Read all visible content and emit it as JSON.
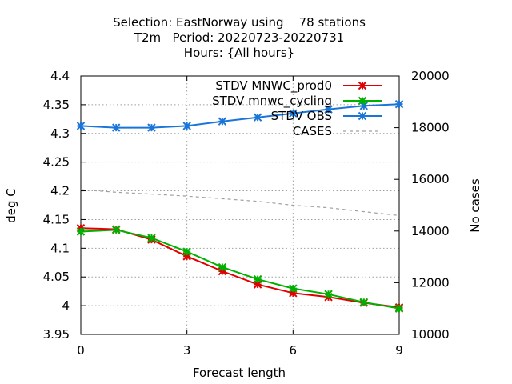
{
  "chart_data": {
    "type": "line",
    "title": [
      "Selection: EastNorway using    78 stations",
      "T2m   Period: 20220723-20220731",
      "Hours: {All hours}"
    ],
    "xlabel": "Forecast length",
    "ylabel": "deg C",
    "y2label": "No cases",
    "xlim": [
      0,
      9
    ],
    "ylim": [
      3.95,
      4.4
    ],
    "y2lim": [
      10000,
      20000
    ],
    "xticks": [
      0,
      3,
      6,
      9
    ],
    "yticks": [
      3.95,
      4,
      4.05,
      4.1,
      4.15,
      4.2,
      4.25,
      4.3,
      4.35,
      4.4
    ],
    "ytick_labels": [
      "3.95",
      "4",
      "4.05",
      "4.1",
      "4.15",
      "4.2",
      "4.25",
      "4.3",
      "4.35",
      "4.4"
    ],
    "y2ticks": [
      10000,
      12000,
      14000,
      16000,
      18000,
      20000
    ],
    "y2tick_labels": [
      "10000",
      "12000",
      "14000",
      "16000",
      "18000",
      "20000"
    ],
    "grid": true,
    "legend_position": "top-right",
    "x": [
      0,
      1,
      2,
      3,
      4,
      5,
      6,
      7,
      8,
      9
    ],
    "series": [
      {
        "name": "STDV MNWC_prod0",
        "color": "#e00000",
        "axis": "y",
        "marker": "star",
        "values": [
          4.135,
          4.133,
          4.115,
          4.086,
          4.06,
          4.037,
          4.022,
          4.015,
          4.005,
          3.997
        ]
      },
      {
        "name": "STDV mnwc_cycling",
        "color": "#00b000",
        "axis": "y",
        "marker": "star",
        "values": [
          4.129,
          4.132,
          4.118,
          4.094,
          4.067,
          4.046,
          4.03,
          4.02,
          4.006,
          3.995
        ]
      },
      {
        "name": "STDV OBS",
        "color": "#1a75d8",
        "axis": "y",
        "marker": "star",
        "values": [
          4.313,
          4.31,
          4.31,
          4.313,
          4.321,
          4.328,
          4.335,
          4.342,
          4.348,
          4.351
        ]
      },
      {
        "name": "CASES",
        "color": "#a0a0a0",
        "axis": "y2",
        "marker": "none",
        "dashed": true,
        "values": [
          15600,
          15500,
          15430,
          15350,
          15250,
          15150,
          15000,
          14900,
          14750,
          14600
        ]
      }
    ]
  }
}
